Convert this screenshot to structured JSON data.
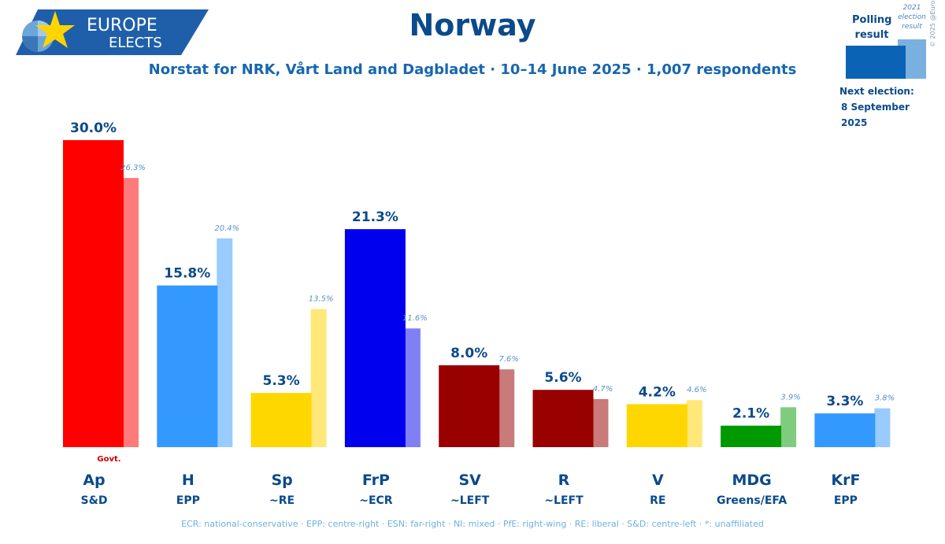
{
  "brand": {
    "line1": "EUROPE",
    "line2": "ELECTS"
  },
  "title": "Norway",
  "subtitle": "Norstat for NRK, Vårt Land and Dagbladet · 10–14 June 2025 · 1,007 respondents",
  "legend": {
    "polling": "Polling result",
    "election": "2021 election result",
    "next_label": "Next election:",
    "next_date": "8 September 2025",
    "copyright": "© 2025 @EuropeElects",
    "polling_color": "#0b63b6",
    "election_color": "#7ab0df"
  },
  "footer": "ECR: national-conservative · EPP: centre-right · ESN: far-right · NI: mixed · PfE: right-wing · RE: liberal · S&D: centre-left · *: unaffiliated",
  "chart_data": {
    "type": "bar",
    "title": "Norway",
    "categories": [
      "Ap",
      "H",
      "Sp",
      "FrP",
      "SV",
      "R",
      "V",
      "MDG",
      "KrF"
    ],
    "groups": [
      "S&D",
      "EPP",
      "~RE",
      "~ECR",
      "~LEFT",
      "~LEFT",
      "RE",
      "Greens/EFA",
      "EPP"
    ],
    "series": [
      {
        "name": "Polling result",
        "values": [
          30.0,
          15.8,
          5.3,
          21.3,
          8.0,
          5.6,
          4.2,
          2.1,
          3.3
        ],
        "labels": [
          "30.0%",
          "15.8%",
          "5.3%",
          "21.3%",
          "8.0%",
          "5.6%",
          "4.2%",
          "2.1%",
          "3.3%"
        ]
      },
      {
        "name": "2021 election result",
        "values": [
          26.3,
          20.4,
          13.5,
          11.6,
          7.6,
          4.7,
          4.6,
          3.9,
          3.8
        ],
        "labels": [
          "26.3%",
          "20.4%",
          "13.5%",
          "11.6%",
          "7.6%",
          "4.7%",
          "4.6%",
          "3.9%",
          "3.8%"
        ]
      }
    ],
    "colors": [
      "#ff0000",
      "#3399ff",
      "#ffd700",
      "#0000ee",
      "#990000",
      "#990000",
      "#ffd700",
      "#009900",
      "#3399ff"
    ],
    "election_colors": [
      "#ff7a7a",
      "#99cbff",
      "#ffe87a",
      "#8080f5",
      "#c97a7a",
      "#c97a7a",
      "#ffe87a",
      "#7fcc7f",
      "#99cbff"
    ],
    "annotations": [
      {
        "category": "Ap",
        "text": "Govt."
      }
    ],
    "ylim": [
      0,
      30.0
    ],
    "grid": false
  }
}
